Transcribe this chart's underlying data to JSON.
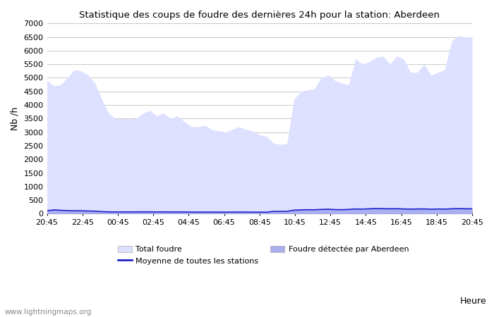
{
  "title": "Statistique des coups de foudre des dernières 24h pour la station: Aberdeen",
  "xlabel": "Heure",
  "ylabel": "Nb /h",
  "ylim": [
    0,
    7000
  ],
  "yticks": [
    0,
    500,
    1000,
    1500,
    2000,
    2500,
    3000,
    3500,
    4000,
    4500,
    5000,
    5500,
    6000,
    6500,
    7000
  ],
  "xtick_labels": [
    "20:45",
    "22:45",
    "00:45",
    "02:45",
    "04:45",
    "06:45",
    "08:45",
    "10:45",
    "12:45",
    "14:45",
    "16:45",
    "18:45",
    "20:45"
  ],
  "bg_color": "#ffffff",
  "grid_color": "#c8c8c8",
  "fill_total_color": "#dde0ff",
  "fill_aberdeen_color": "#aab0f0",
  "line_mean_color": "#2222cc",
  "watermark": "www.lightningmaps.org",
  "total_foudre": [
    4900,
    4700,
    4750,
    5000,
    5300,
    5250,
    5100,
    4800,
    4200,
    3700,
    3500,
    3500,
    3480,
    3500,
    3700,
    3800,
    3600,
    3700,
    3500,
    3600,
    3400,
    3200,
    3200,
    3250,
    3100,
    3050,
    3000,
    3100,
    3200,
    3100,
    3050,
    2900,
    2850,
    2600,
    2550,
    2580,
    4200,
    4500,
    4550,
    4600,
    5000,
    5100,
    4900,
    4800,
    4750,
    5700,
    5500,
    5600,
    5750,
    5800,
    5500,
    5800,
    5700,
    5200,
    5200,
    5500,
    5100,
    5200,
    5300,
    6350,
    6550,
    6500,
    6500
  ],
  "aberdeen_foudre": [
    130,
    170,
    150,
    140,
    130,
    130,
    120,
    110,
    90,
    80,
    75,
    80,
    75,
    80,
    80,
    80,
    75,
    80,
    75,
    75,
    75,
    70,
    70,
    70,
    70,
    65,
    65,
    68,
    70,
    68,
    65,
    65,
    63,
    100,
    95,
    98,
    150,
    160,
    170,
    165,
    180,
    190,
    175,
    170,
    180,
    200,
    195,
    210,
    220,
    215,
    210,
    215,
    200,
    195,
    200,
    205,
    190,
    200,
    195,
    210,
    215,
    210,
    210
  ],
  "mean_line": [
    110,
    140,
    125,
    115,
    108,
    108,
    100,
    95,
    78,
    68,
    65,
    68,
    65,
    68,
    68,
    68,
    65,
    68,
    65,
    65,
    65,
    60,
    60,
    60,
    60,
    58,
    58,
    60,
    62,
    60,
    58,
    58,
    55,
    88,
    85,
    88,
    130,
    140,
    148,
    145,
    158,
    165,
    152,
    148,
    158,
    175,
    170,
    182,
    190,
    185,
    182,
    185,
    175,
    170,
    175,
    178,
    165,
    175,
    170,
    182,
    188,
    182,
    182
  ]
}
